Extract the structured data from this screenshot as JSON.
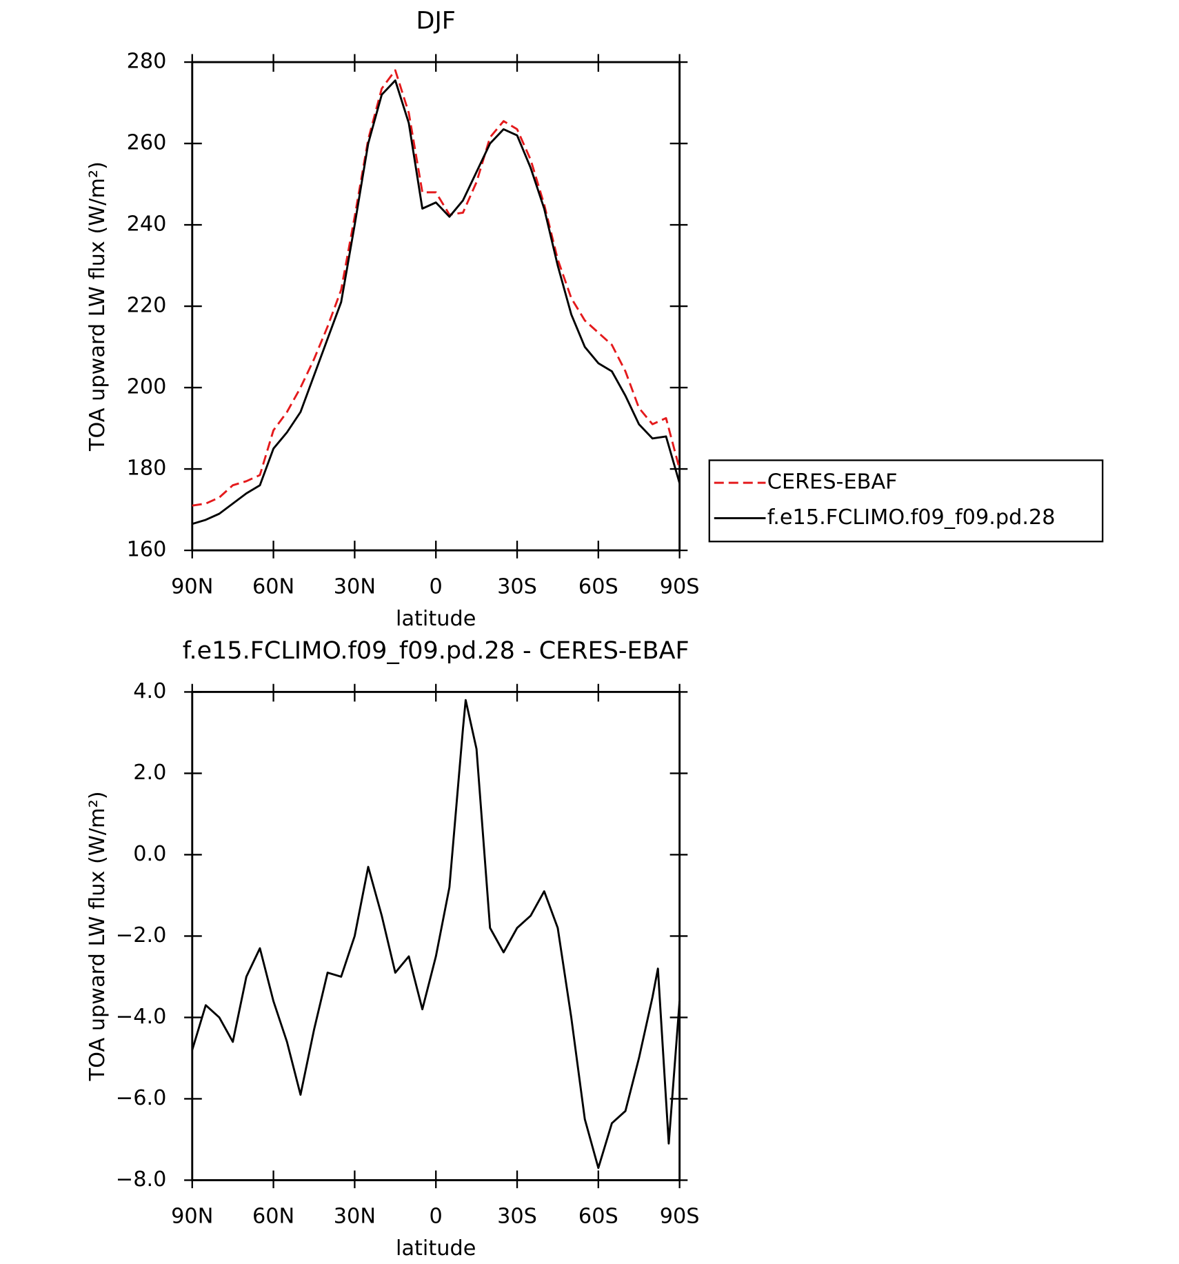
{
  "chart_data": [
    {
      "type": "line",
      "title": "DJF",
      "x_label": "latitude",
      "y_label": "TOA upward LW flux (W/m²)",
      "x": [
        90,
        85,
        80,
        75,
        70,
        65,
        60,
        55,
        50,
        45,
        40,
        35,
        30,
        25,
        20,
        15,
        10,
        5,
        0,
        -5,
        -10,
        -15,
        -20,
        -25,
        -30,
        -35,
        -40,
        -45,
        -50,
        -55,
        -60,
        -65,
        -70,
        -75,
        -80,
        -85,
        -90
      ],
      "series": [
        {
          "name": "CERES-EBAF",
          "color": "#e41a1c",
          "dash": true,
          "values": [
            171,
            171.5,
            173,
            176,
            177,
            178.5,
            189.5,
            194,
            200,
            207,
            215,
            224,
            242,
            261,
            273.5,
            278,
            267.5,
            248,
            248,
            242.5,
            243,
            250.5,
            261.5,
            265.5,
            263.5,
            256,
            245,
            231.5,
            222,
            216.5,
            213.5,
            210.5,
            204,
            195,
            191,
            192.5,
            180
          ]
        },
        {
          "name": "f.e15.FCLIMO.f09_f09.pd.28",
          "color": "#000000",
          "dash": false,
          "values": [
            166.5,
            167.5,
            169,
            171.5,
            174,
            176,
            185,
            189,
            194,
            203,
            212,
            221,
            240,
            260,
            272,
            275.5,
            265,
            244,
            245.5,
            242,
            246,
            253,
            260,
            263.5,
            262,
            254,
            244,
            230,
            218,
            210,
            206,
            204,
            198,
            191,
            187.5,
            188,
            176.5
          ]
        }
      ],
      "xlim": [
        90,
        -90
      ],
      "xticks": [
        {
          "value": 90,
          "label": "90N"
        },
        {
          "value": 60,
          "label": "60N"
        },
        {
          "value": 30,
          "label": "30N"
        },
        0,
        {
          "value": -30,
          "label": "30S"
        },
        {
          "value": -60,
          "label": "60S"
        },
        {
          "value": -90,
          "label": "90S"
        }
      ],
      "ylim": [
        160,
        280
      ],
      "yticks": [
        160,
        180,
        200,
        220,
        240,
        260,
        280
      ],
      "legend": "right"
    },
    {
      "type": "line",
      "title": "f.e15.FCLIMO.f09_f09.pd.28 - CERES-EBAF",
      "x_label": "latitude",
      "y_label": "TOA upward LW flux (W/m²)",
      "x": [
        90,
        85,
        80,
        75,
        70,
        65,
        60,
        55,
        50,
        45,
        40,
        35,
        30,
        25,
        20,
        15,
        10,
        5,
        0,
        -5,
        -10,
        -11,
        -15,
        -20,
        -25,
        -30,
        -35,
        -40,
        -45,
        -50,
        -55,
        -60,
        -65,
        -70,
        -75,
        -80,
        -82,
        -86,
        -90
      ],
      "series": [
        {
          "name": "f.e15.FCLIMO.f09_f09.pd.28 - CERES-EBAF",
          "color": "#000000",
          "dash": false,
          "values": [
            -4.8,
            -3.7,
            -4.0,
            -4.6,
            -3.0,
            -2.3,
            -3.6,
            -4.6,
            -5.9,
            -4.3,
            -2.9,
            -3.0,
            -2.0,
            -0.3,
            -1.5,
            -2.9,
            -2.5,
            -3.8,
            -2.5,
            -0.8,
            3.1,
            3.8,
            2.6,
            -1.8,
            -2.4,
            -1.8,
            -1.5,
            -0.9,
            -1.8,
            -4.0,
            -6.5,
            -7.7,
            -6.6,
            -6.3,
            -5.0,
            -3.5,
            -2.8,
            -7.1,
            -3.6
          ]
        }
      ],
      "xlim": [
        90,
        -90
      ],
      "xticks": [
        {
          "value": 90,
          "label": "90N"
        },
        {
          "value": 60,
          "label": "60N"
        },
        {
          "value": 30,
          "label": "30N"
        },
        0,
        {
          "value": -30,
          "label": "30S"
        },
        {
          "value": -60,
          "label": "60S"
        },
        {
          "value": -90,
          "label": "90S"
        }
      ],
      "ylim": [
        -8,
        4
      ],
      "yticks": [
        {
          "value": -8,
          "label": "−8.0"
        },
        {
          "value": -6,
          "label": "−6.0"
        },
        {
          "value": -4,
          "label": "−4.0"
        },
        {
          "value": -2,
          "label": "−2.0"
        },
        {
          "value": 0,
          "label": "0.0"
        },
        {
          "value": 2,
          "label": "2.0"
        },
        {
          "value": 4,
          "label": "4.0"
        }
      ]
    }
  ]
}
